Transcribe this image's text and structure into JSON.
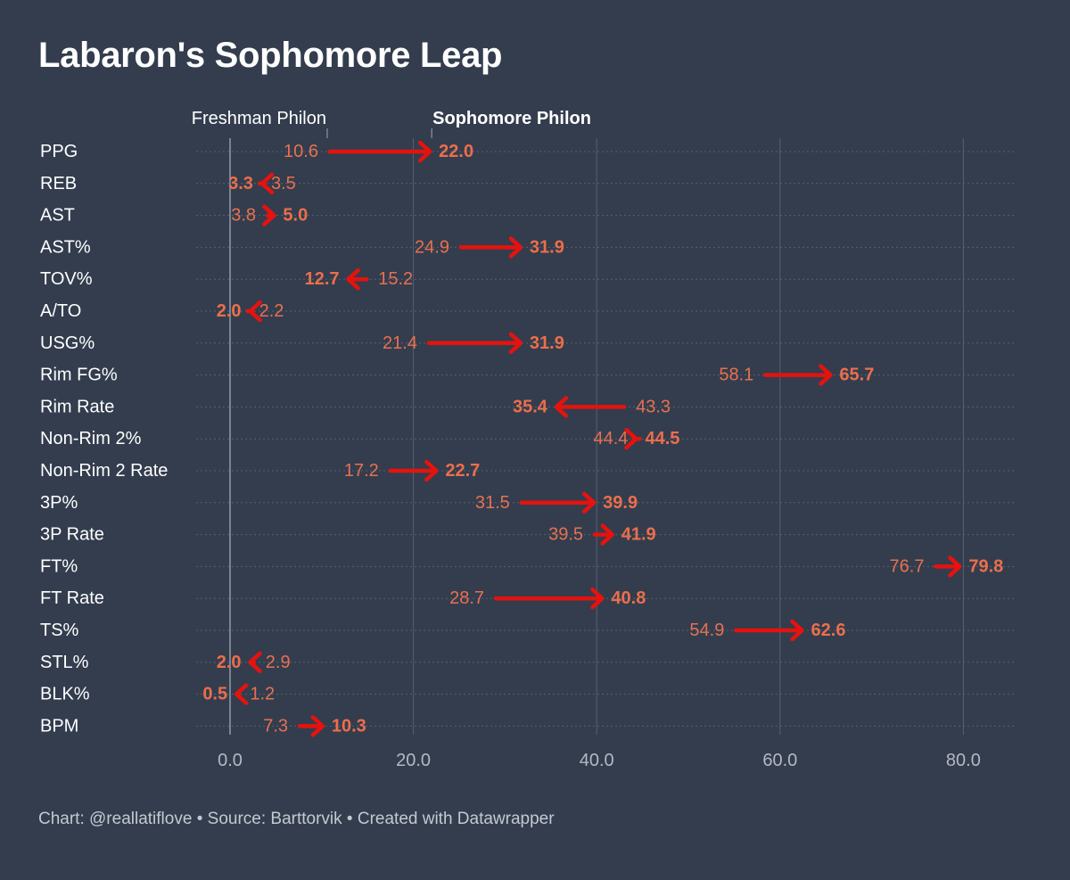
{
  "chart_data": {
    "type": "arrow",
    "title": "Labaron's Sophomore Leap",
    "legend": {
      "from": "Freshman Philon",
      "to": "Sophomore Philon"
    },
    "legend_positions": {
      "from": 10.6,
      "to": 22.0
    },
    "xlim": [
      0,
      80
    ],
    "x_ticks": [
      0,
      20,
      40,
      60,
      80
    ],
    "x_tick_labels": [
      "0.0",
      "20.0",
      "40.0",
      "60.0",
      "80.0"
    ],
    "rows": [
      {
        "label": "PPG",
        "from": 10.6,
        "to": 22.0,
        "from_label": "10.6",
        "to_label": "22.0"
      },
      {
        "label": "REB",
        "from": 3.5,
        "to": 3.3,
        "from_label": "3.5",
        "to_label": "3.3"
      },
      {
        "label": "AST",
        "from": 3.8,
        "to": 5.0,
        "from_label": "3.8",
        "to_label": "5.0"
      },
      {
        "label": "AST%",
        "from": 24.9,
        "to": 31.9,
        "from_label": "24.9",
        "to_label": "31.9"
      },
      {
        "label": "TOV%",
        "from": 15.2,
        "to": 12.7,
        "from_label": "15.2",
        "to_label": "12.7"
      },
      {
        "label": "A/TO",
        "from": 2.2,
        "to": 2.0,
        "from_label": "2.2",
        "to_label": "2.0"
      },
      {
        "label": "USG%",
        "from": 21.4,
        "to": 31.9,
        "from_label": "21.4",
        "to_label": "31.9"
      },
      {
        "label": "Rim FG%",
        "from": 58.1,
        "to": 65.7,
        "from_label": "58.1",
        "to_label": "65.7"
      },
      {
        "label": "Rim Rate",
        "from": 43.3,
        "to": 35.4,
        "from_label": "43.3",
        "to_label": "35.4"
      },
      {
        "label": "Non-Rim 2%",
        "from": 44.4,
        "to": 44.5,
        "from_label": "44.4",
        "to_label": "44.5"
      },
      {
        "label": "Non-Rim 2 Rate",
        "from": 17.2,
        "to": 22.7,
        "from_label": "17.2",
        "to_label": "22.7"
      },
      {
        "label": "3P%",
        "from": 31.5,
        "to": 39.9,
        "from_label": "31.5",
        "to_label": "39.9"
      },
      {
        "label": "3P Rate",
        "from": 39.5,
        "to": 41.9,
        "from_label": "39.5",
        "to_label": "41.9"
      },
      {
        "label": "FT%",
        "from": 76.7,
        "to": 79.8,
        "from_label": "76.7",
        "to_label": "79.8"
      },
      {
        "label": "FT Rate",
        "from": 28.7,
        "to": 40.8,
        "from_label": "28.7",
        "to_label": "40.8"
      },
      {
        "label": "TS%",
        "from": 54.9,
        "to": 62.6,
        "from_label": "54.9",
        "to_label": "62.6"
      },
      {
        "label": "STL%",
        "from": 2.9,
        "to": 2.0,
        "from_label": "2.9",
        "to_label": "2.0"
      },
      {
        "label": "BLK%",
        "from": 1.2,
        "to": 0.5,
        "from_label": "1.2",
        "to_label": "0.5"
      },
      {
        "label": "BPM",
        "from": 7.3,
        "to": 10.3,
        "from_label": "7.3",
        "to_label": "10.3"
      }
    ],
    "colors": {
      "background": "#333d4e",
      "arrow": "#e6120e",
      "value_from": "#e8704e",
      "value_to": "#ec6e4b",
      "gridline": "#566072",
      "zero_line": "#8c95a3",
      "tick_label": "#b3b9c2"
    },
    "footer": {
      "credit": "Chart: @reallatiflove",
      "separator": "•",
      "source": "Source: Barttorvik",
      "tool": "Created with Datawrapper"
    }
  }
}
